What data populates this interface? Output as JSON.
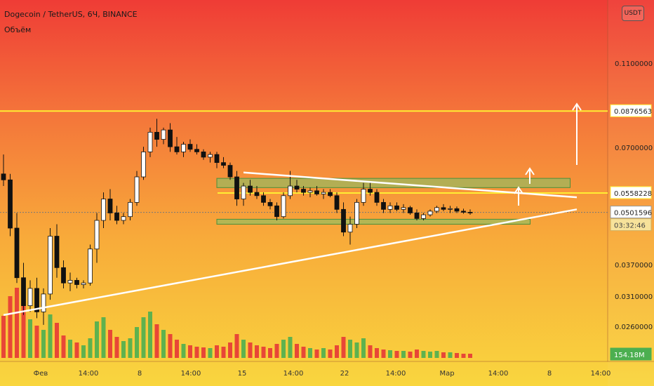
{
  "header": {
    "symbol_line": "Dogecoin / TetherUS, 6Ч, BINANCE",
    "volume_label": "Объём"
  },
  "unit_badge": "USDT",
  "colors": {
    "up": "#4caf50",
    "down": "#e53935",
    "level_line": "#ffee33",
    "trend_line": "#ffffff",
    "zone_fill": "#7cc46a"
  },
  "chart_data": {
    "type": "candlestick",
    "ylim": [
      0.0225,
      0.1525
    ],
    "y_ticks": [
      "0.1100000",
      "0.0700000",
      "0.0370000",
      "0.0310000",
      "0.0260000"
    ],
    "x_ticks": [
      "Фев",
      "14:00",
      "8",
      "14:00",
      "15",
      "14:00",
      "22",
      "14:00",
      "Мар",
      "14:00",
      "8",
      "14:00"
    ],
    "price_labels": {
      "upper_level": "0.0876563",
      "lower_level": "0.0558228",
      "current_price": "0.0501596",
      "countdown": "03:32:46",
      "volume_value": "154.18M"
    },
    "levels": {
      "upper_level": 0.0876563,
      "lower_level": 0.0558228,
      "current_price": 0.0501596
    },
    "series": [
      {
        "values": [
          [
            0.062,
            0.069,
            0.058,
            0.06
          ],
          [
            0.06,
            0.062,
            0.044,
            0.046
          ],
          [
            0.046,
            0.05,
            0.034,
            0.035
          ],
          [
            0.035,
            0.038,
            0.0285,
            0.03
          ],
          [
            0.03,
            0.0345,
            0.029,
            0.033
          ],
          [
            0.033,
            0.035,
            0.028,
            0.029
          ],
          [
            0.029,
            0.033,
            0.027,
            0.032
          ],
          [
            0.032,
            0.046,
            0.031,
            0.044
          ],
          [
            0.044,
            0.047,
            0.035,
            0.037
          ],
          [
            0.037,
            0.0385,
            0.033,
            0.034
          ],
          [
            0.034,
            0.036,
            0.0325,
            0.0345
          ],
          [
            0.0345,
            0.035,
            0.033,
            0.0337
          ],
          [
            0.0337,
            0.0345,
            0.033,
            0.034
          ],
          [
            0.034,
            0.042,
            0.0335,
            0.041
          ],
          [
            0.041,
            0.05,
            0.038,
            0.048
          ],
          [
            0.048,
            0.056,
            0.046,
            0.054
          ],
          [
            0.054,
            0.057,
            0.048,
            0.05
          ],
          [
            0.05,
            0.052,
            0.047,
            0.048
          ],
          [
            0.048,
            0.05,
            0.047,
            0.049
          ],
          [
            0.049,
            0.054,
            0.048,
            0.053
          ],
          [
            0.053,
            0.063,
            0.052,
            0.061
          ],
          [
            0.061,
            0.072,
            0.06,
            0.07
          ],
          [
            0.07,
            0.08,
            0.068,
            0.078
          ],
          [
            0.078,
            0.084,
            0.072,
            0.075
          ],
          [
            0.075,
            0.08,
            0.073,
            0.079
          ],
          [
            0.079,
            0.082,
            0.07,
            0.072
          ],
          [
            0.072,
            0.076,
            0.069,
            0.07
          ],
          [
            0.07,
            0.074,
            0.068,
            0.073
          ],
          [
            0.073,
            0.075,
            0.07,
            0.071
          ],
          [
            0.071,
            0.073,
            0.069,
            0.07
          ],
          [
            0.07,
            0.071,
            0.067,
            0.068
          ],
          [
            0.068,
            0.07,
            0.066,
            0.069
          ],
          [
            0.069,
            0.07,
            0.064,
            0.066
          ],
          [
            0.066,
            0.068,
            0.064,
            0.065
          ],
          [
            0.065,
            0.066,
            0.06,
            0.061
          ],
          [
            0.061,
            0.063,
            0.052,
            0.054
          ],
          [
            0.054,
            0.059,
            0.052,
            0.058
          ],
          [
            0.058,
            0.06,
            0.055,
            0.056
          ],
          [
            0.056,
            0.058,
            0.054,
            0.055
          ],
          [
            0.055,
            0.056,
            0.052,
            0.053
          ],
          [
            0.053,
            0.054,
            0.051,
            0.052
          ],
          [
            0.052,
            0.053,
            0.048,
            0.049
          ],
          [
            0.049,
            0.056,
            0.0485,
            0.055
          ],
          [
            0.055,
            0.063,
            0.054,
            0.058
          ],
          [
            0.058,
            0.06,
            0.056,
            0.057
          ],
          [
            0.057,
            0.058,
            0.055,
            0.056
          ],
          [
            0.056,
            0.0575,
            0.0545,
            0.0565
          ],
          [
            0.0565,
            0.058,
            0.055,
            0.0555
          ],
          [
            0.0555,
            0.057,
            0.054,
            0.056
          ],
          [
            0.056,
            0.057,
            0.0545,
            0.055
          ],
          [
            0.055,
            0.056,
            0.05,
            0.051
          ],
          [
            0.051,
            0.053,
            0.044,
            0.045
          ],
          [
            0.045,
            0.049,
            0.042,
            0.047
          ],
          [
            0.047,
            0.054,
            0.046,
            0.053
          ],
          [
            0.053,
            0.059,
            0.052,
            0.057
          ],
          [
            0.057,
            0.059,
            0.055,
            0.056
          ],
          [
            0.056,
            0.057,
            0.052,
            0.053
          ],
          [
            0.053,
            0.054,
            0.05,
            0.051
          ],
          [
            0.051,
            0.053,
            0.05,
            0.052
          ],
          [
            0.052,
            0.053,
            0.0505,
            0.051
          ],
          [
            0.051,
            0.0525,
            0.05,
            0.0515
          ],
          [
            0.0515,
            0.052,
            0.0495,
            0.05
          ],
          [
            0.05,
            0.051,
            0.048,
            0.0485
          ],
          [
            0.0485,
            0.05,
            0.048,
            0.0495
          ],
          [
            0.0495,
            0.051,
            0.049,
            0.0505
          ],
          [
            0.0505,
            0.052,
            0.05,
            0.0515
          ],
          [
            0.0515,
            0.0525,
            0.0505,
            0.051
          ],
          [
            0.051,
            0.052,
            0.05,
            0.0512
          ],
          [
            0.0512,
            0.0518,
            0.05,
            0.0505
          ],
          [
            0.0505,
            0.0512,
            0.0498,
            0.0502
          ],
          [
            0.0502,
            0.051,
            0.0495,
            0.0501596
          ]
        ]
      }
    ],
    "volumes": [
      0.6,
      0.88,
      1.0,
      0.78,
      0.55,
      0.46,
      0.4,
      0.62,
      0.5,
      0.32,
      0.26,
      0.22,
      0.18,
      0.28,
      0.52,
      0.58,
      0.4,
      0.3,
      0.24,
      0.28,
      0.44,
      0.58,
      0.66,
      0.48,
      0.4,
      0.34,
      0.26,
      0.2,
      0.18,
      0.16,
      0.15,
      0.14,
      0.18,
      0.16,
      0.22,
      0.34,
      0.26,
      0.22,
      0.18,
      0.16,
      0.14,
      0.2,
      0.26,
      0.3,
      0.2,
      0.16,
      0.14,
      0.12,
      0.14,
      0.12,
      0.18,
      0.3,
      0.26,
      0.22,
      0.28,
      0.18,
      0.14,
      0.12,
      0.11,
      0.1,
      0.1,
      0.09,
      0.12,
      0.1,
      0.09,
      0.1,
      0.08,
      0.08,
      0.07,
      0.06,
      0.06
    ],
    "trend_lines": [
      {
        "from": [
          0,
          0.0285
        ],
        "to": [
          86,
          0.051
        ]
      },
      {
        "from": [
          36,
          0.0625
        ],
        "to": [
          86,
          0.0545
        ]
      }
    ],
    "zones": [
      {
        "x_start": 32,
        "x_end": 85,
        "y_low": 0.0575,
        "y_high": 0.0605
      },
      {
        "x_start": 32,
        "x_end": 79,
        "y_low": 0.047,
        "y_high": 0.0483
      }
    ]
  }
}
